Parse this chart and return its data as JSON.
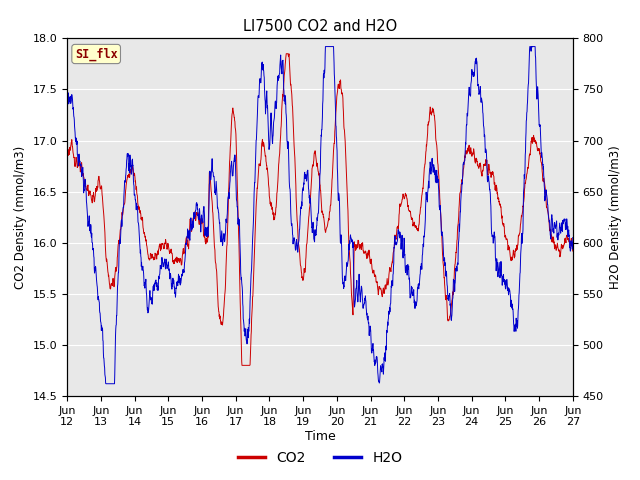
{
  "title": "LI7500 CO2 and H2O",
  "xlabel": "Time",
  "ylabel_left": "CO2 Density (mmol/m3)",
  "ylabel_right": "H2O Density (mmol/m3)",
  "co2_ylim": [
    14.5,
    18.0
  ],
  "h2o_ylim": [
    450,
    800
  ],
  "co2_color": "#cc0000",
  "h2o_color": "#0000cc",
  "fig_bg": "#ffffff",
  "plot_bg": "#e8e8e8",
  "annotation_text": "SI_flx",
  "annotation_color": "#8b0000",
  "annotation_bg": "#ffffcc",
  "x_tick_labels": [
    "Jun\n12",
    "Jun\n13",
    "Jun\n14",
    "Jun\n15",
    "Jun\n16",
    "Jun\n17",
    "Jun\n18",
    "Jun\n19",
    "Jun\n20",
    "Jun\n21",
    "Jun\n22",
    "Jun\n23",
    "Jun\n24",
    "Jun\n25",
    "Jun\n26",
    "Jun\n27"
  ],
  "co2_yticks": [
    14.5,
    15.0,
    15.5,
    16.0,
    16.5,
    17.0,
    17.5,
    18.0
  ],
  "h2o_yticks": [
    450,
    500,
    550,
    600,
    650,
    700,
    750,
    800
  ],
  "n_points": 2000,
  "duration_days": 15,
  "seed": 123
}
